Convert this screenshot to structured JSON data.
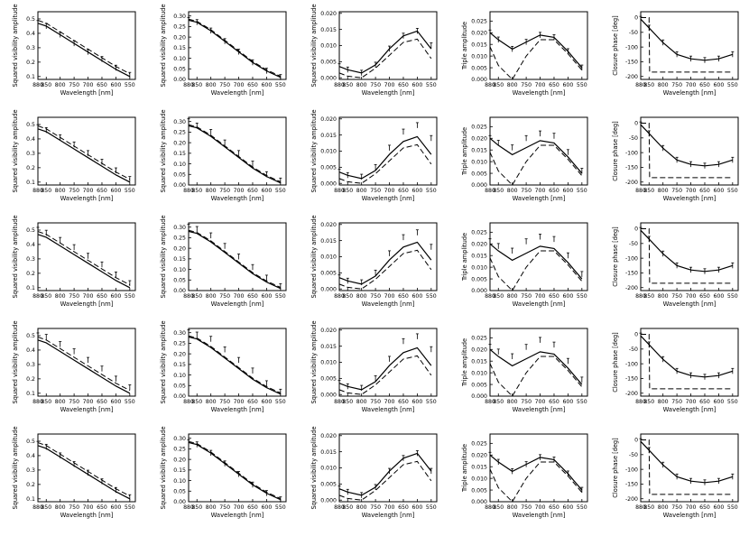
{
  "chart_data": {
    "type": "line",
    "layout": {
      "rows": 5,
      "cols": 5
    },
    "x": [
      880,
      850,
      800,
      750,
      700,
      650,
      600,
      550
    ],
    "x_tick_labels": [
      "880",
      "850",
      "800",
      "750",
      "700",
      "650",
      "600",
      "550"
    ],
    "xlim": [
      880,
      530
    ],
    "xlabel": "Wavelength [nm]",
    "legend": "none",
    "grid": false,
    "columns": [
      {
        "ylabel": "Squared visibility amplitude",
        "ylim": [
          0.08,
          0.55
        ],
        "yticks": [
          "0.1",
          "0.2",
          "0.3",
          "0.4",
          "0.5"
        ],
        "ytick_values": [
          0.1,
          0.2,
          0.3,
          0.4,
          0.5
        ],
        "model_solid": [
          0.47,
          0.45,
          0.39,
          0.33,
          0.27,
          0.21,
          0.15,
          0.1
        ],
        "model_dashed": [
          0.49,
          0.47,
          0.41,
          0.35,
          0.29,
          0.23,
          0.17,
          0.12
        ],
        "observed_by_row": [
          [
            0.47,
            0.45,
            0.39,
            0.33,
            0.27,
            0.22,
            0.16,
            0.11
          ],
          [
            0.48,
            0.46,
            0.41,
            0.36,
            0.3,
            0.24,
            0.18,
            0.12
          ],
          [
            0.5,
            0.48,
            0.43,
            0.38,
            0.32,
            0.26,
            0.19,
            0.13
          ],
          [
            0.5,
            0.49,
            0.44,
            0.39,
            0.33,
            0.27,
            0.2,
            0.14
          ],
          [
            0.48,
            0.46,
            0.4,
            0.34,
            0.28,
            0.22,
            0.16,
            0.11
          ]
        ]
      },
      {
        "ylabel": "Squared visibility amplitude",
        "ylim": [
          0.0,
          0.32
        ],
        "yticks": [
          "0.00",
          "0.05",
          "0.10",
          "0.15",
          "0.20",
          "0.25",
          "0.30"
        ],
        "ytick_values": [
          0.0,
          0.05,
          0.1,
          0.15,
          0.2,
          0.25,
          0.3
        ],
        "model_solid": [
          0.28,
          0.27,
          0.23,
          0.18,
          0.13,
          0.08,
          0.04,
          0.01
        ],
        "model_dashed": [
          0.285,
          0.275,
          0.235,
          0.185,
          0.135,
          0.085,
          0.045,
          0.015
        ],
        "observed_by_row": [
          [
            0.28,
            0.27,
            0.23,
            0.18,
            0.13,
            0.08,
            0.04,
            0.01
          ],
          [
            0.3,
            0.28,
            0.25,
            0.2,
            0.15,
            0.1,
            0.05,
            0.02
          ],
          [
            0.3,
            0.29,
            0.26,
            0.21,
            0.16,
            0.11,
            0.06,
            0.02
          ],
          [
            0.3,
            0.29,
            0.27,
            0.22,
            0.17,
            0.12,
            0.06,
            0.02
          ],
          [
            0.28,
            0.27,
            0.23,
            0.18,
            0.13,
            0.08,
            0.04,
            0.01
          ]
        ]
      },
      {
        "ylabel": "Squared visibility amplitude",
        "ylim": [
          -0.0005,
          0.0205
        ],
        "yticks": [
          "0.000",
          "0.005",
          "0.010",
          "0.015",
          "0.020"
        ],
        "ytick_values": [
          0.0,
          0.005,
          0.01,
          0.015,
          0.02
        ],
        "model_solid": [
          0.0035,
          0.0025,
          0.0015,
          0.004,
          0.009,
          0.013,
          0.0145,
          0.009
        ],
        "model_dashed": [
          0.0015,
          0.0005,
          0.0,
          0.003,
          0.007,
          0.011,
          0.012,
          0.006
        ],
        "observed_by_row": [
          [
            0.0035,
            0.0025,
            0.0015,
            0.004,
            0.009,
            0.013,
            0.0145,
            0.01
          ],
          [
            0.0035,
            0.0025,
            0.002,
            0.005,
            0.011,
            0.016,
            0.018,
            0.014
          ],
          [
            0.0035,
            0.0025,
            0.002,
            0.005,
            0.011,
            0.016,
            0.0175,
            0.013
          ],
          [
            0.0035,
            0.0025,
            0.002,
            0.005,
            0.011,
            0.0165,
            0.018,
            0.014
          ],
          [
            0.0035,
            0.0025,
            0.0015,
            0.004,
            0.009,
            0.013,
            0.0145,
            0.009
          ]
        ]
      },
      {
        "ylabel": "Triple amplitude",
        "ylim": [
          0.0,
          0.029
        ],
        "yticks": [
          "0.000",
          "0.005",
          "0.010",
          "0.015",
          "0.020",
          "0.025"
        ],
        "ytick_values": [
          0.0,
          0.005,
          0.01,
          0.015,
          0.02,
          0.025
        ],
        "model_solid": [
          0.02,
          0.017,
          0.013,
          0.016,
          0.019,
          0.018,
          0.012,
          0.005
        ],
        "model_dashed": [
          0.014,
          0.006,
          0.0,
          0.01,
          0.017,
          0.017,
          0.011,
          0.004
        ],
        "observed_by_row": [
          [
            0.02,
            0.017,
            0.013,
            0.016,
            0.019,
            0.018,
            0.012,
            0.005
          ],
          [
            0.02,
            0.018,
            0.016,
            0.02,
            0.022,
            0.021,
            0.014,
            0.006
          ],
          [
            0.021,
            0.019,
            0.017,
            0.021,
            0.023,
            0.022,
            0.015,
            0.007
          ],
          [
            0.021,
            0.019,
            0.017,
            0.021,
            0.024,
            0.022,
            0.015,
            0.007
          ],
          [
            0.02,
            0.017,
            0.013,
            0.016,
            0.019,
            0.018,
            0.012,
            0.005
          ]
        ]
      },
      {
        "ylabel": "Closure phase [deg]",
        "ylim": [
          -210,
          20
        ],
        "yticks": [
          "0",
          "-50",
          "-100",
          "-150",
          "-200"
        ],
        "ytick_values": [
          0,
          -50,
          -100,
          -150,
          -200
        ],
        "model_solid": [
          -5,
          -35,
          -85,
          -125,
          -140,
          -145,
          -140,
          -125
        ],
        "model_dashed_x": [
          880,
          875,
          850,
          848,
          835,
          760,
          700,
          650,
          600,
          550
        ],
        "model_dashed_y": [
          0,
          0,
          0,
          -185,
          -185,
          -185,
          -185,
          -185,
          -185,
          -185
        ],
        "observed_by_row": [
          [
            -5,
            -35,
            -85,
            -125,
            -140,
            -145,
            -140,
            -125
          ],
          [
            -5,
            -35,
            -85,
            -125,
            -140,
            -145,
            -140,
            -125
          ],
          [
            -5,
            -35,
            -85,
            -125,
            -140,
            -145,
            -140,
            -125
          ],
          [
            -5,
            -35,
            -85,
            -125,
            -140,
            -145,
            -140,
            -125
          ],
          [
            -5,
            -35,
            -85,
            -125,
            -140,
            -145,
            -140,
            -125
          ]
        ]
      }
    ]
  }
}
